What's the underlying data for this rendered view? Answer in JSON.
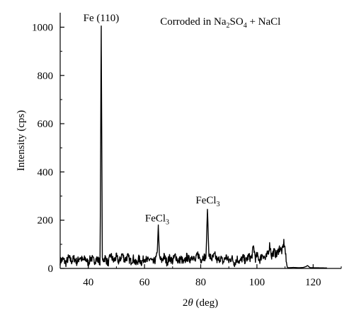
{
  "chart_data": {
    "type": "line",
    "title": "",
    "xlabel_symbol": "2",
    "xlabel_theta": "θ",
    "xlabel_unit": " (deg)",
    "ylabel": "Intensity (cps)",
    "xlim": [
      30,
      130
    ],
    "ylim": [
      0,
      1060
    ],
    "x_ticks": [
      40,
      60,
      80,
      100,
      120
    ],
    "y_ticks": [
      0,
      200,
      400,
      600,
      800,
      1000
    ],
    "grid": false,
    "line_color": "#000000",
    "annotations": [
      {
        "id": "corroded",
        "parts": [
          "Corroded in Na",
          "2",
          "SO",
          "4",
          " + NaCl"
        ],
        "x": 87,
        "y": 1010
      },
      {
        "id": "fe110",
        "parts": [
          "Fe (110)"
        ],
        "x": 44.6,
        "y": 1025
      },
      {
        "id": "fecl3-a",
        "parts": [
          "FeCl",
          "3"
        ],
        "x": 64.5,
        "y": 195
      },
      {
        "id": "fecl3-b",
        "parts": [
          "FeCl",
          "3"
        ],
        "x": 82.5,
        "y": 270
      }
    ],
    "series": [
      {
        "baseline": [
          [
            30,
            30
          ],
          [
            31,
            38
          ],
          [
            32,
            22
          ],
          [
            33,
            45
          ],
          [
            34,
            30
          ],
          [
            35,
            42
          ],
          [
            36,
            25
          ],
          [
            37,
            48
          ],
          [
            38,
            32
          ],
          [
            39,
            40
          ],
          [
            40,
            22
          ],
          [
            41,
            46
          ],
          [
            42,
            30
          ],
          [
            43,
            40
          ],
          [
            44,
            28
          ],
          [
            44.4,
            35
          ],
          [
            45.0,
            30
          ],
          [
            46,
            45
          ],
          [
            47,
            20
          ],
          [
            48,
            55
          ],
          [
            49,
            30
          ],
          [
            50,
            48
          ],
          [
            51,
            25
          ],
          [
            52,
            60
          ],
          [
            53,
            35
          ],
          [
            54,
            50
          ],
          [
            55,
            28
          ],
          [
            56,
            42
          ],
          [
            57,
            18
          ],
          [
            58,
            40
          ],
          [
            59,
            25
          ],
          [
            60,
            45
          ],
          [
            61,
            30
          ],
          [
            62,
            40
          ],
          [
            63,
            22
          ],
          [
            64,
            38
          ],
          [
            64.6,
            60
          ],
          [
            65.6,
            40
          ],
          [
            66,
            30
          ],
          [
            67,
            50
          ],
          [
            68,
            25
          ],
          [
            69,
            45
          ],
          [
            70,
            30
          ],
          [
            71,
            55
          ],
          [
            72,
            28
          ],
          [
            73,
            42
          ],
          [
            74,
            20
          ],
          [
            75,
            48
          ],
          [
            76,
            35
          ],
          [
            77,
            55
          ],
          [
            78,
            30
          ],
          [
            79,
            60
          ],
          [
            80,
            35
          ],
          [
            81,
            50
          ],
          [
            81.8,
            45
          ],
          [
            83.2,
            50
          ],
          [
            84,
            40
          ],
          [
            85,
            55
          ],
          [
            86,
            30
          ],
          [
            87,
            45
          ],
          [
            88,
            25
          ],
          [
            89,
            50
          ],
          [
            90,
            30
          ],
          [
            91,
            45
          ],
          [
            92,
            22
          ],
          [
            93,
            40
          ],
          [
            94,
            28
          ],
          [
            95,
            45
          ],
          [
            96,
            30
          ],
          [
            97,
            50
          ],
          [
            98,
            40
          ],
          [
            98.8,
            90
          ],
          [
            99.5,
            40
          ],
          [
            100,
            55
          ],
          [
            101,
            35
          ],
          [
            102,
            60
          ],
          [
            103,
            38
          ],
          [
            104,
            65
          ],
          [
            104.6,
            100
          ],
          [
            105.2,
            50
          ],
          [
            106,
            70
          ],
          [
            107,
            55
          ],
          [
            108,
            85
          ],
          [
            109,
            70
          ],
          [
            109.6,
            110
          ],
          [
            110,
            80
          ],
          [
            110.4,
            30
          ],
          [
            110.8,
            5
          ],
          [
            111,
            3
          ],
          [
            113,
            4
          ],
          [
            115,
            3
          ],
          [
            116.5,
            4
          ],
          [
            117.5,
            8
          ],
          [
            118,
            12
          ],
          [
            118.6,
            6
          ],
          [
            119,
            3
          ],
          [
            125,
            2
          ]
        ],
        "peaks": [
          {
            "center": 44.6,
            "height": 1005,
            "halfwidth": 0.4
          },
          {
            "center": 64.9,
            "height": 180,
            "halfwidth": 0.5
          },
          {
            "center": 82.4,
            "height": 245,
            "halfwidth": 0.6
          }
        ]
      }
    ]
  }
}
